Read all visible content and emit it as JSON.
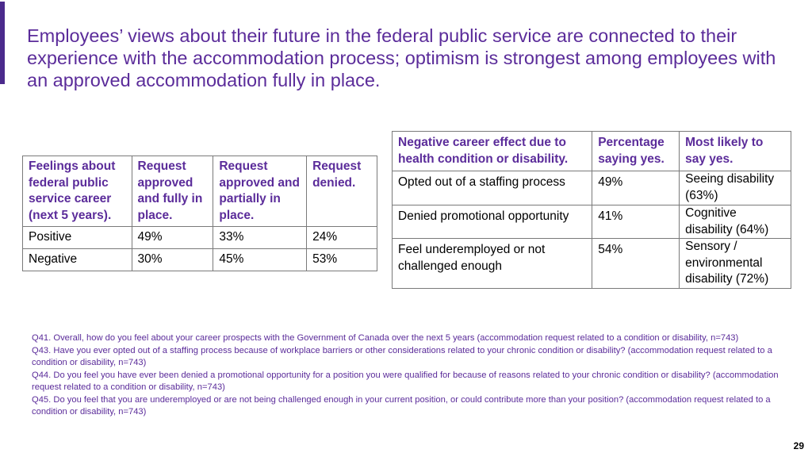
{
  "title": "Employees’ views about their future in the federal public service are connected to their experience with the accommodation process; optimism is strongest among employees with an approved accommodation fully in place.",
  "table_career": {
    "headers": [
      "Feelings about federal public service career (next 5 years).",
      "Request approved and fully in place.",
      "Request approved and partially in place.",
      "Request denied."
    ],
    "rows": [
      [
        "Positive",
        "49%",
        "33%",
        "24%"
      ],
      [
        "Negative",
        "30%",
        "45%",
        "53%"
      ]
    ]
  },
  "table_negative": {
    "headers": [
      "Negative career effect due to health condition or disability.",
      "Percentage saying yes.",
      "Most likely to say yes."
    ],
    "rows": [
      [
        "Opted out of a staffing process",
        "49%",
        "Seeing disability (63%)"
      ],
      [
        "Denied promotional opportunity",
        "41%",
        "Cognitive disability (64%)"
      ],
      [
        "Feel underemployed or not challenged enough",
        "54%",
        "Sensory / environmental disability (72%)"
      ]
    ]
  },
  "footnotes": [
    "Q41. Overall, how do you feel about your career prospects with the Government of Canada over the next 5 years (accommodation request related to a condition or disability, n=743)",
    "Q43. Have you ever opted out of a staffing process because of workplace barriers or other considerations related to your chronic condition or disability? (accommodation request related to a condition or disability, n=743)",
    "Q44. Do you feel you have ever been denied a promotional opportunity for a position you were qualified for because of reasons related to your chronic condition or disability? (accommodation request related to a condition or disability, n=743)",
    "Q45. Do you feel that you are underemployed or are not being challenged enough in your current position, or could contribute more than your position? (accommodation request related to a condition or disability, n=743)"
  ],
  "page_number": "29",
  "colors": {
    "accent": "#5b2c9a",
    "border": "#7a7a7a"
  }
}
